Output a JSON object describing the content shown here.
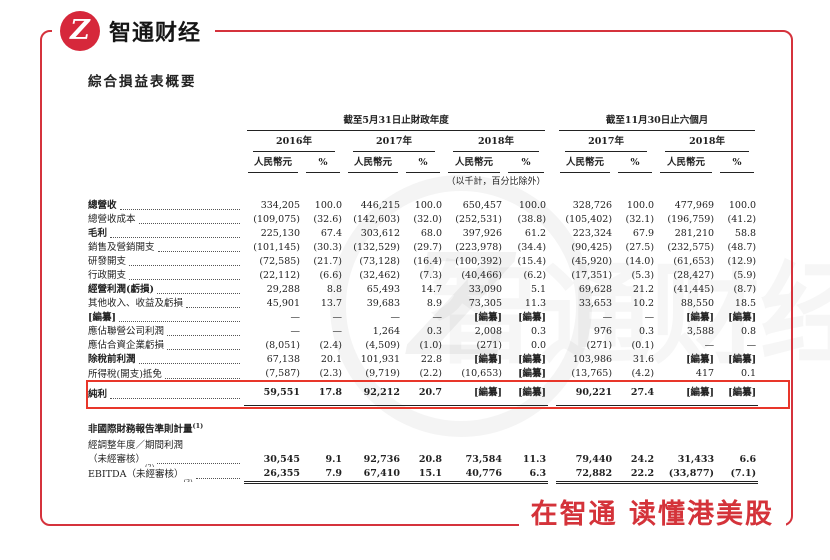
{
  "brand": {
    "name": "智通财经",
    "logo_letter": "Z",
    "slogan": "在智通 读懂港美股",
    "brand_red": "#d6283b",
    "frame_red": "#d5323c",
    "highlight_red": "#e8362a"
  },
  "title": "綜合損益表概要",
  "table": {
    "group_headers": [
      "截至5月31日止財政年度",
      "截至11月30日止六個月"
    ],
    "year_headers": [
      "2016年",
      "2017年",
      "2018年",
      "2017年",
      "2018年"
    ],
    "currency_label": "人民幣元",
    "percent_label": "%",
    "unit_note": "（以千計，百分比除外）",
    "rows": [
      {
        "label": "總營收",
        "bold": true,
        "values": [
          "334,205",
          "100.0",
          "446,215",
          "100.0",
          "650,457",
          "100.0",
          "328,726",
          "100.0",
          "477,969",
          "100.0"
        ]
      },
      {
        "label": "總營收成本",
        "values": [
          "(109,075)",
          "(32.6)",
          "(142,603)",
          "(32.0)",
          "(252,531)",
          "(38.8)",
          "(105,402)",
          "(32.1)",
          "(196,759)",
          "(41.2)"
        ]
      },
      {
        "label": "毛利",
        "bold": true,
        "values": [
          "225,130",
          "67.4",
          "303,612",
          "68.0",
          "397,926",
          "61.2",
          "223,324",
          "67.9",
          "281,210",
          "58.8"
        ]
      },
      {
        "label": "銷售及營銷開支",
        "values": [
          "(101,145)",
          "(30.3)",
          "(132,529)",
          "(29.7)",
          "(223,978)",
          "(34.4)",
          "(90,425)",
          "(27.5)",
          "(232,575)",
          "(48.7)"
        ]
      },
      {
        "label": "研發開支",
        "values": [
          "(72,585)",
          "(21.7)",
          "(73,128)",
          "(16.4)",
          "(100,392)",
          "(15.4)",
          "(45,920)",
          "(14.0)",
          "(61,653)",
          "(12.9)"
        ]
      },
      {
        "label": "行政開支",
        "values": [
          "(22,112)",
          "(6.6)",
          "(32,462)",
          "(7.3)",
          "(40,466)",
          "(6.2)",
          "(17,351)",
          "(5.3)",
          "(28,427)",
          "(5.9)"
        ]
      },
      {
        "label": "經營利潤(虧損)",
        "bold": true,
        "values": [
          "29,288",
          "8.8",
          "65,493",
          "14.7",
          "33,090",
          "5.1",
          "69,628",
          "21.2",
          "(41,445)",
          "(8.7)"
        ]
      },
      {
        "label": "其他收入、收益及虧損",
        "values": [
          "45,901",
          "13.7",
          "39,683",
          "8.9",
          "73,305",
          "11.3",
          "33,653",
          "10.2",
          "88,550",
          "18.5"
        ]
      },
      {
        "label": "[編纂]",
        "bold": true,
        "values": [
          "—",
          "—",
          "—",
          "—",
          "[編纂]",
          "[編纂]",
          "—",
          "—",
          "[編纂]",
          "[編纂]"
        ]
      },
      {
        "label": "應佔聯營公司利潤",
        "values": [
          "—",
          "—",
          "1,264",
          "0.3",
          "2,008",
          "0.3",
          "976",
          "0.3",
          "3,588",
          "0.8"
        ]
      },
      {
        "label": "應佔合資企業虧損",
        "values": [
          "(8,051)",
          "(2.4)",
          "(4,509)",
          "(1.0)",
          "(271)",
          "0.0",
          "(271)",
          "(0.1)",
          "—",
          "—"
        ]
      },
      {
        "label": "除稅前利潤",
        "bold": true,
        "values": [
          "67,138",
          "20.1",
          "101,931",
          "22.8",
          "[編纂]",
          "[編纂]",
          "103,986",
          "31.6",
          "[編纂]",
          "[編纂]"
        ]
      },
      {
        "label": "所得稅(開支)抵免",
        "values": [
          "(7,587)",
          "(2.3)",
          "(9,719)",
          "(2.2)",
          "(10,653)",
          "[編纂]",
          "(13,765)",
          "(4.2)",
          "417",
          "0.1"
        ]
      },
      {
        "label": "純利",
        "bold": true,
        "valbold": true,
        "cls": "hl",
        "vcls": "topline dbl",
        "values": [
          "59,551",
          "17.8",
          "92,212",
          "20.7",
          "[編纂]",
          "[編纂]",
          "90,221",
          "27.4",
          "[編纂]",
          "[編纂]"
        ]
      },
      {
        "type": "spacer",
        "h": 10
      },
      {
        "type": "section",
        "label": "非國際財務報告準則計量",
        "sup": "(1)"
      },
      {
        "label": "經調整年度／期間利潤",
        "label2": "（未經審核）",
        "sup": "(2)",
        "valbold": true,
        "values": [
          "30,545",
          "9.1",
          "92,736",
          "20.8",
          "73,584",
          "11.3",
          "79,440",
          "24.2",
          "31,433",
          "6.6"
        ]
      },
      {
        "label": "EBITDA（未經審核）",
        "sup": "(3)",
        "valbold": true,
        "vcls": "dbl",
        "values": [
          "26,355",
          "7.9",
          "67,410",
          "15.1",
          "40,776",
          "6.3",
          "72,882",
          "22.2",
          "(33,877)",
          "(7.1)"
        ]
      }
    ]
  }
}
